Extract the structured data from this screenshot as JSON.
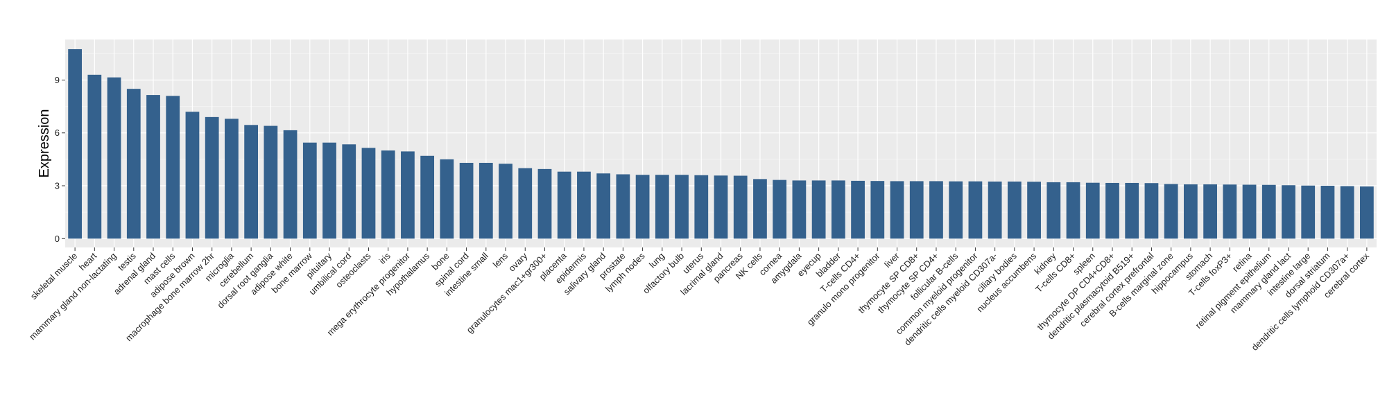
{
  "chart_data": {
    "type": "bar",
    "ylabel": "Expression",
    "xlabel": "",
    "title": "",
    "ylim": [
      -0.5,
      11.3
    ],
    "yticks": [
      0,
      3,
      6,
      9
    ],
    "grid": true,
    "colors": {
      "bar": "#34618d",
      "panel": "#ebebeb",
      "grid_major": "#ffffff",
      "grid_minor": "#f5f5f5"
    },
    "categories": [
      "skeletal muscle",
      "heart",
      "mammary gland non-lactating",
      "testis",
      "adrenal gland",
      "mast cells",
      "adipose brown",
      "macrophage bone marrow 2hr",
      "microglia",
      "cerebellum",
      "dorsal root ganglia",
      "adipose white",
      "bone marrow",
      "pituitary",
      "umbilical cord",
      "osteoclasts",
      "iris",
      "mega erythrocyte progenitor",
      "hypothalamus",
      "bone",
      "spinal cord",
      "intestine small",
      "lens",
      "ovary",
      "granulocytes mac1+gr300+",
      "placenta",
      "epidermis",
      "salivary gland",
      "prostate",
      "lymph nodes",
      "lung",
      "olfactory bulb",
      "uterus",
      "lacrimal gland",
      "pancreas",
      "NK cells",
      "cornea",
      "amygdala",
      "eyecup",
      "bladder",
      "T-cells CD4+",
      "granulo mono progenitor",
      "liver",
      "thymocyte SP CD8+",
      "thymocyte SP CD4+",
      "follicular B-cells",
      "common myeloid progenitor",
      "dendritic cells myeloid CD307a-",
      "ciliary bodies",
      "nucleus accumbens",
      "kidney",
      "T-cells CD8+",
      "spleen",
      "thymocyte DP CD4+CD8+",
      "dendritic plasmacytoid B519+",
      "cerebral cortex prefrontal",
      "B-cells marginal zone",
      "hippocampus",
      "stomach",
      "T-cells foxP3+",
      "retina",
      "retinal pigment epithelium",
      "mammary gland lact",
      "intestine large",
      "dorsal striatum",
      "dendritic cells lymphoid CD307a+",
      "cerebral cortex"
    ],
    "values": [
      10.75,
      9.3,
      9.15,
      8.5,
      8.15,
      8.1,
      7.2,
      6.9,
      6.8,
      6.45,
      6.4,
      6.15,
      5.45,
      5.45,
      5.35,
      5.15,
      5.0,
      4.95,
      4.7,
      4.5,
      4.3,
      4.3,
      4.25,
      4.0,
      3.95,
      3.8,
      3.8,
      3.7,
      3.65,
      3.62,
      3.62,
      3.62,
      3.6,
      3.58,
      3.57,
      3.38,
      3.33,
      3.3,
      3.3,
      3.3,
      3.28,
      3.27,
      3.26,
      3.26,
      3.26,
      3.25,
      3.25,
      3.24,
      3.24,
      3.23,
      3.2,
      3.2,
      3.17,
      3.16,
      3.16,
      3.15,
      3.1,
      3.08,
      3.08,
      3.07,
      3.06,
      3.05,
      3.03,
      3.01,
      3.0,
      2.98,
      2.96
    ]
  }
}
